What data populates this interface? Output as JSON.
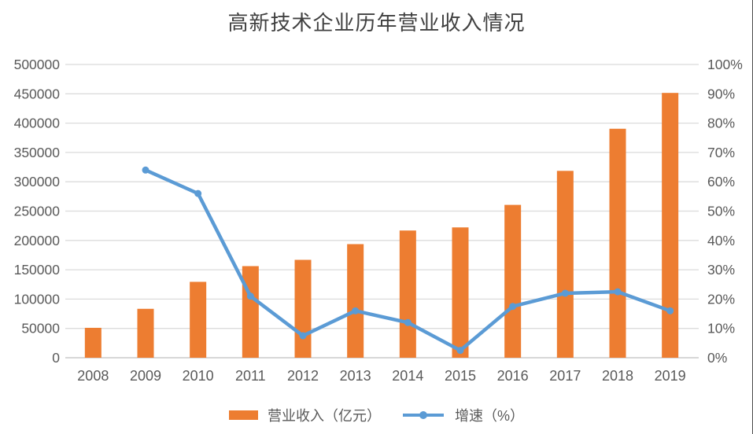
{
  "chart_data": {
    "type": "combo",
    "title": "高新技术企业历年营业收入情况",
    "categories": [
      "2008",
      "2009",
      "2010",
      "2011",
      "2012",
      "2013",
      "2014",
      "2015",
      "2016",
      "2017",
      "2018",
      "2019"
    ],
    "series": [
      {
        "name": "营业收入（亿元）",
        "type": "bar",
        "axis": "left",
        "color": "#ED7D31",
        "values": [
          51000,
          83400,
          129400,
          156200,
          166900,
          193700,
          216900,
          222200,
          260600,
          318600,
          390400,
          451500
        ]
      },
      {
        "name": "增速（%）",
        "type": "line",
        "axis": "right",
        "color": "#5B9BD5",
        "values": [
          null,
          64,
          56,
          21,
          7.5,
          16,
          12,
          2.5,
          17.5,
          22,
          22.5,
          16
        ]
      }
    ],
    "left_axis": {
      "min": 0,
      "max": 500000,
      "step": 50000,
      "tick_labels": [
        "0",
        "50000",
        "100000",
        "150000",
        "200000",
        "250000",
        "300000",
        "350000",
        "400000",
        "450000",
        "500000"
      ]
    },
    "right_axis": {
      "min": 0,
      "max": 100,
      "step": 10,
      "tick_labels": [
        "0%",
        "10%",
        "20%",
        "30%",
        "40%",
        "50%",
        "60%",
        "70%",
        "80%",
        "90%",
        "100%"
      ]
    },
    "grid": true,
    "gridline_color": "#DBDBDB",
    "baseline_color": "#BFBFBF",
    "legend_position": "bottom",
    "xlabel": "",
    "ylabel_left": "",
    "ylabel_right": ""
  }
}
